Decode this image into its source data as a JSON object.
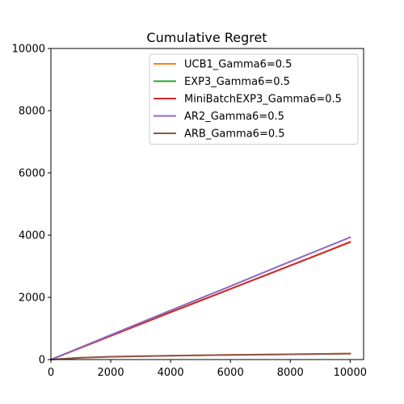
{
  "chart_data": {
    "type": "line",
    "title": "Cumulative Regret",
    "xlabel": "",
    "ylabel": "",
    "xlim": [
      0,
      10450
    ],
    "ylim": [
      0,
      10000
    ],
    "xticks": [
      0,
      2000,
      4000,
      6000,
      8000,
      10000
    ],
    "yticks": [
      0,
      2000,
      4000,
      6000,
      8000,
      10000
    ],
    "grid": false,
    "legend_position": "top-right",
    "series": [
      {
        "name": "UCB1_Gamma6=0.5",
        "color": "#ff7f0e",
        "x": [
          0,
          1000,
          2000,
          4000,
          6000,
          8000,
          10000
        ],
        "y": [
          0,
          60,
          90,
          125,
          150,
          170,
          190
        ]
      },
      {
        "name": "EXP3_Gamma6=0.5",
        "color": "#2ca02c",
        "x": [
          0,
          2000,
          4000,
          6000,
          8000,
          10000
        ],
        "y": [
          0,
          760,
          1520,
          2270,
          3020,
          3770
        ]
      },
      {
        "name": "MiniBatchEXP3_Gamma6=0.5",
        "color": "#d62728",
        "x": [
          0,
          2000,
          4000,
          6000,
          8000,
          10000
        ],
        "y": [
          0,
          760,
          1520,
          2270,
          3020,
          3780
        ]
      },
      {
        "name": "AR2_Gamma6=0.5",
        "color": "#9467bd",
        "x": [
          0,
          2000,
          4000,
          6000,
          8000,
          10000
        ],
        "y": [
          0,
          790,
          1580,
          2360,
          3150,
          3930
        ]
      },
      {
        "name": "ARB_Gamma6=0.5",
        "color": "#8c564b",
        "x": [
          0,
          1000,
          2000,
          4000,
          6000,
          8000,
          10000
        ],
        "y": [
          0,
          60,
          90,
          125,
          150,
          170,
          190
        ]
      }
    ]
  }
}
